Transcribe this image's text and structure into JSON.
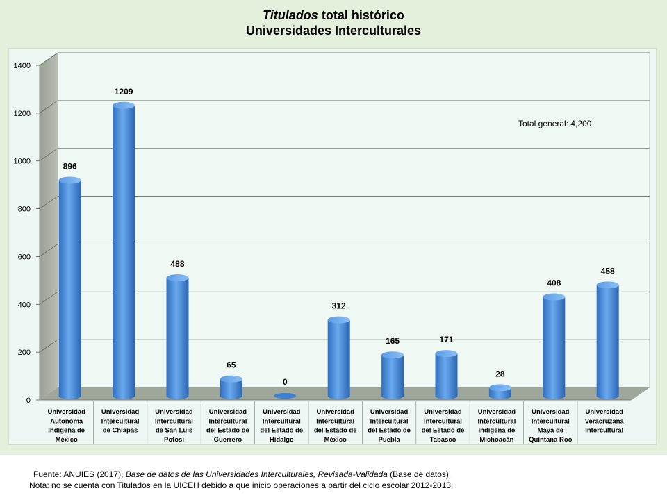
{
  "title": {
    "italic_part": "Titulados",
    "rest": " total histórico",
    "line2": "Universidades Interculturales"
  },
  "annotation": "Total general: 4,200",
  "footer": {
    "source_prefix": "Fuente: ANUIES (2017),  ",
    "source_italic": "Base de datos de las Universidades  Interculturales, Revisada-Validada",
    "source_suffix": "  (Base de datos).",
    "note": "Nota: no se cuenta con Titulados en la UICEH  debido a que inicio operaciones a partir del ciclo escolar 2012-2013."
  },
  "colors": {
    "bar": "#4a8fdc",
    "floor": "#9fa69a",
    "plot_bg": "#eef7f3"
  },
  "chart_data": {
    "type": "bar",
    "title": "Titulados total histórico Universidades Interculturales",
    "ylim": [
      0,
      1400
    ],
    "yticks": [
      "0",
      "200",
      "400",
      "600",
      "800",
      "1000",
      "1200",
      "1400"
    ],
    "grid": true,
    "categories": [
      [
        "Universidad",
        "Autónoma",
        "Indígena de",
        "México"
      ],
      [
        "Universidad",
        "Intercultural",
        "de Chiapas"
      ],
      [
        "Universidad",
        "Intercultural",
        "de San Luis",
        "Potosí"
      ],
      [
        "Universidad",
        "Intercultural",
        "del Estado de",
        "Guerrero"
      ],
      [
        "Universidad",
        "Intercultural",
        "del Estado de",
        "Hidalgo"
      ],
      [
        "Universidad",
        "Intercultural",
        "del Estado de",
        "México"
      ],
      [
        "Universidad",
        "Intercultural",
        "del Estado de",
        "Puebla"
      ],
      [
        "Universidad",
        "Intercultural",
        "del Estado de",
        "Tabasco"
      ],
      [
        "Universidad",
        "Intercultural",
        "Indígena de",
        "Michoacán"
      ],
      [
        "Universidad",
        "Intercultural",
        "Maya de",
        "Quintana Roo"
      ],
      [
        "Universidad",
        "Veracruzana",
        "Intercultural"
      ]
    ],
    "values": [
      896,
      1209,
      488,
      65,
      0,
      312,
      165,
      171,
      28,
      408,
      458
    ],
    "value_labels": [
      "896",
      "1209",
      "488",
      "65",
      "0",
      "312",
      "165",
      "171",
      "28",
      "408",
      "458"
    ]
  }
}
